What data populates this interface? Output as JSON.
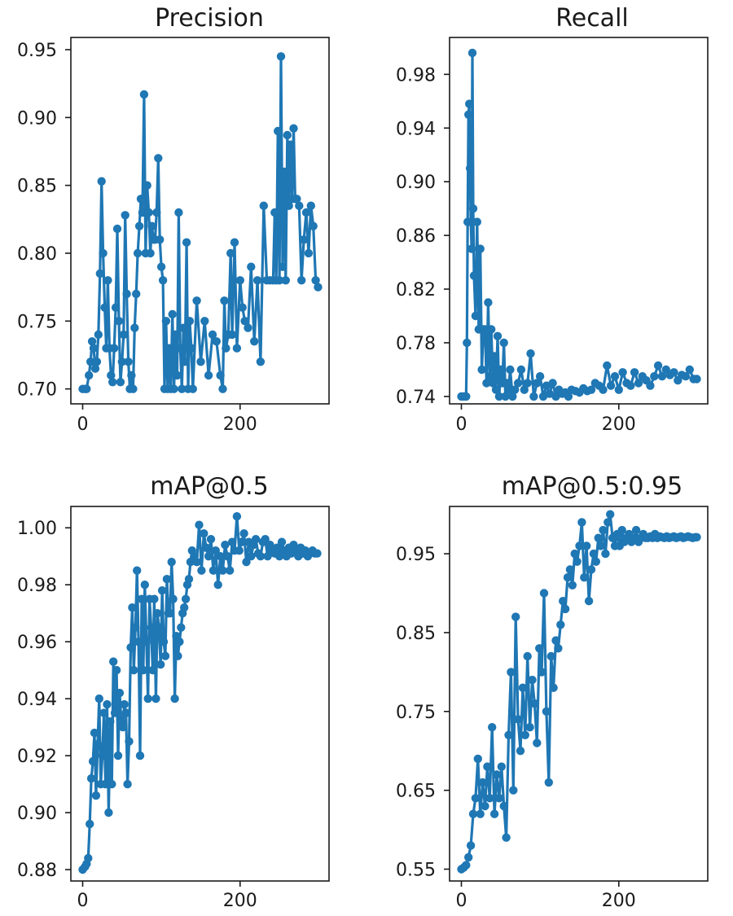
{
  "colors": {
    "series": "#1f77b4",
    "axes": "#1a1a1a",
    "background": "#ffffff"
  },
  "chart_data": [
    {
      "type": "line",
      "title": "Precision",
      "xlabel": "",
      "ylabel": "",
      "xlim": [
        -15,
        313
      ],
      "ylim": [
        0.689,
        0.959
      ],
      "xticks": [
        0,
        200
      ],
      "yticks": [
        0.7,
        0.75,
        0.8,
        0.85,
        0.9,
        0.95
      ],
      "ytick_labels": [
        "0.70",
        "0.75",
        "0.80",
        "0.85",
        "0.90",
        "0.95"
      ],
      "markers": true,
      "series": [
        {
          "name": "Precision",
          "x": [
            0,
            3,
            5,
            8,
            10,
            12,
            14,
            16,
            18,
            20,
            22,
            24,
            26,
            28,
            30,
            32,
            34,
            36,
            38,
            40,
            42,
            44,
            46,
            48,
            50,
            52,
            54,
            56,
            58,
            60,
            62,
            64,
            66,
            68,
            70,
            72,
            74,
            76,
            78,
            80,
            82,
            84,
            86,
            88,
            90,
            92,
            94,
            96,
            98,
            100,
            102,
            104,
            106,
            108,
            110,
            112,
            114,
            116,
            118,
            120,
            122,
            124,
            126,
            128,
            130,
            132,
            134,
            136,
            138,
            140,
            145,
            150,
            155,
            160,
            165,
            170,
            175,
            178,
            180,
            182,
            185,
            188,
            190,
            193,
            196,
            200,
            203,
            206,
            210,
            214,
            218,
            222,
            226,
            230,
            234,
            238,
            242,
            244,
            246,
            248,
            250,
            252,
            254,
            256,
            258,
            260,
            262,
            264,
            266,
            268,
            270,
            272,
            275,
            278,
            281,
            284,
            287,
            290,
            293,
            296,
            299
          ],
          "values": [
            0.7,
            0.7,
            0.7,
            0.71,
            0.72,
            0.735,
            0.73,
            0.715,
            0.72,
            0.74,
            0.785,
            0.853,
            0.8,
            0.76,
            0.73,
            0.78,
            0.73,
            0.71,
            0.705,
            0.73,
            0.76,
            0.818,
            0.75,
            0.705,
            0.72,
            0.74,
            0.828,
            0.77,
            0.72,
            0.7,
            0.71,
            0.7,
            0.745,
            0.77,
            0.8,
            0.82,
            0.84,
            0.83,
            0.917,
            0.8,
            0.85,
            0.83,
            0.8,
            0.82,
            0.81,
            0.81,
            0.83,
            0.87,
            0.81,
            0.79,
            0.78,
            0.7,
            0.75,
            0.7,
            0.73,
            0.7,
            0.755,
            0.7,
            0.74,
            0.71,
            0.83,
            0.73,
            0.7,
            0.745,
            0.72,
            0.808,
            0.7,
            0.75,
            0.73,
            0.7,
            0.765,
            0.72,
            0.75,
            0.71,
            0.74,
            0.735,
            0.71,
            0.7,
            0.765,
            0.73,
            0.74,
            0.8,
            0.74,
            0.808,
            0.73,
            0.78,
            0.76,
            0.75,
            0.745,
            0.79,
            0.735,
            0.78,
            0.72,
            0.835,
            0.78,
            0.78,
            0.78,
            0.83,
            0.78,
            0.89,
            0.78,
            0.945,
            0.79,
            0.86,
            0.78,
            0.887,
            0.835,
            0.88,
            0.84,
            0.892,
            0.84,
            0.84,
            0.835,
            0.78,
            0.81,
            0.83,
            0.8,
            0.835,
            0.82,
            0.78,
            0.775
          ]
        }
      ]
    },
    {
      "type": "line",
      "title": "Recall",
      "xlabel": "",
      "ylabel": "",
      "xlim": [
        -15,
        313
      ],
      "ylim": [
        0.7345,
        1.0075
      ],
      "xticks": [
        0,
        200
      ],
      "yticks": [
        0.74,
        0.78,
        0.82,
        0.86,
        0.9,
        0.94,
        0.98
      ],
      "ytick_labels": [
        "0.74",
        "0.78",
        "0.82",
        "0.86",
        "0.90",
        "0.94",
        "0.98"
      ],
      "markers": true,
      "series": [
        {
          "name": "Recall",
          "x": [
            0,
            2,
            4,
            6,
            7,
            8,
            9,
            10,
            11,
            12,
            13,
            14,
            15,
            16,
            18,
            20,
            22,
            24,
            26,
            28,
            30,
            32,
            34,
            36,
            38,
            40,
            42,
            44,
            46,
            48,
            50,
            52,
            54,
            56,
            58,
            60,
            62,
            65,
            68,
            72,
            76,
            80,
            84,
            88,
            92,
            96,
            100,
            104,
            108,
            112,
            116,
            120,
            124,
            128,
            132,
            136,
            140,
            145,
            150,
            155,
            160,
            165,
            170,
            175,
            180,
            185,
            190,
            195,
            200,
            205,
            210,
            215,
            220,
            225,
            230,
            235,
            240,
            245,
            250,
            255,
            260,
            265,
            270,
            275,
            280,
            285,
            290,
            295,
            299
          ],
          "values": [
            0.74,
            0.74,
            0.74,
            0.74,
            0.78,
            0.87,
            0.95,
            0.958,
            0.91,
            0.87,
            0.85,
            0.996,
            0.88,
            0.83,
            0.8,
            0.87,
            0.79,
            0.85,
            0.76,
            0.79,
            0.79,
            0.75,
            0.81,
            0.755,
            0.79,
            0.75,
            0.77,
            0.745,
            0.785,
            0.74,
            0.76,
            0.75,
            0.78,
            0.74,
            0.75,
            0.745,
            0.76,
            0.74,
            0.745,
            0.75,
            0.76,
            0.745,
            0.75,
            0.772,
            0.74,
            0.75,
            0.755,
            0.74,
            0.748,
            0.742,
            0.75,
            0.74,
            0.745,
            0.742,
            0.743,
            0.74,
            0.745,
            0.744,
            0.743,
            0.746,
            0.744,
            0.745,
            0.75,
            0.748,
            0.745,
            0.763,
            0.748,
            0.755,
            0.745,
            0.758,
            0.75,
            0.748,
            0.758,
            0.75,
            0.755,
            0.752,
            0.748,
            0.755,
            0.763,
            0.755,
            0.76,
            0.756,
            0.758,
            0.752,
            0.756,
            0.755,
            0.76,
            0.753,
            0.753
          ]
        }
      ]
    },
    {
      "type": "line",
      "title": "mAP@0.5",
      "xlabel": "",
      "ylabel": "",
      "xlim": [
        -15,
        313
      ],
      "ylim": [
        0.876,
        1.0075
      ],
      "xticks": [
        0,
        200
      ],
      "yticks": [
        0.88,
        0.9,
        0.92,
        0.94,
        0.96,
        0.98,
        1.0
      ],
      "ytick_labels": [
        "0.88",
        "0.90",
        "0.92",
        "0.94",
        "0.96",
        "0.98",
        "1.00"
      ],
      "markers": true,
      "series": [
        {
          "name": "mAP@0.5",
          "x": [
            0,
            3,
            5,
            7,
            9,
            11,
            13,
            15,
            17,
            19,
            21,
            23,
            25,
            27,
            29,
            31,
            33,
            35,
            37,
            39,
            41,
            43,
            45,
            47,
            49,
            51,
            53,
            55,
            57,
            59,
            61,
            63,
            65,
            67,
            69,
            71,
            73,
            75,
            77,
            79,
            81,
            83,
            85,
            87,
            89,
            91,
            93,
            95,
            97,
            99,
            101,
            103,
            105,
            107,
            109,
            111,
            113,
            115,
            117,
            119,
            121,
            123,
            125,
            127,
            129,
            131,
            133,
            135,
            137,
            139,
            142,
            145,
            148,
            151,
            154,
            157,
            160,
            163,
            166,
            169,
            172,
            175,
            178,
            181,
            184,
            187,
            190,
            193,
            196,
            199,
            202,
            205,
            208,
            211,
            214,
            217,
            220,
            223,
            226,
            229,
            232,
            235,
            238,
            241,
            244,
            247,
            250,
            253,
            256,
            259,
            262,
            265,
            268,
            271,
            274,
            277,
            280,
            283,
            286,
            289,
            292,
            295,
            298
          ],
          "values": [
            0.88,
            0.881,
            0.882,
            0.884,
            0.896,
            0.912,
            0.918,
            0.928,
            0.906,
            0.924,
            0.94,
            0.91,
            0.92,
            0.935,
            0.91,
            0.938,
            0.9,
            0.932,
            0.91,
            0.953,
            0.935,
            0.95,
            0.92,
            0.942,
            0.932,
            0.93,
            0.938,
            0.935,
            0.91,
            0.925,
            0.958,
            0.972,
            0.95,
            0.965,
            0.985,
            0.96,
            0.92,
            0.975,
            0.95,
            0.98,
            0.96,
            0.94,
            0.975,
            0.965,
            0.95,
            0.975,
            0.94,
            0.97,
            0.965,
            0.952,
            0.978,
            0.96,
            0.955,
            0.982,
            0.97,
            0.97,
            0.988,
            0.975,
            0.94,
            0.962,
            0.955,
            0.96,
            0.965,
            0.97,
            0.972,
            0.975,
            0.98,
            0.982,
            0.988,
            0.992,
            0.99,
            0.988,
            1.001,
            0.985,
            0.998,
            0.993,
            0.99,
            0.996,
            0.985,
            0.992,
            0.98,
            0.99,
            0.985,
            0.994,
            0.99,
            0.985,
            0.995,
            0.992,
            1.004,
            0.992,
            0.995,
            0.998,
            0.988,
            0.995,
            0.99,
            0.994,
            0.996,
            0.991,
            0.99,
            0.995,
            0.996,
            0.99,
            0.994,
            0.992,
            0.991,
            0.993,
            0.99,
            0.995,
            0.992,
            0.99,
            0.993,
            0.991,
            0.994,
            0.992,
            0.99,
            0.993,
            0.991,
            0.992,
            0.99,
            0.991,
            0.992,
            0.991,
            0.991
          ]
        }
      ]
    },
    {
      "type": "line",
      "title": "mAP@0.5:0.95",
      "xlabel": "",
      "ylabel": "",
      "xlim": [
        -15,
        313
      ],
      "ylim": [
        0.535,
        1.01
      ],
      "xticks": [
        0,
        200
      ],
      "yticks": [
        0.55,
        0.65,
        0.75,
        0.85,
        0.95
      ],
      "ytick_labels": [
        "0.55",
        "0.65",
        "0.75",
        "0.85",
        "0.95"
      ],
      "markers": true,
      "series": [
        {
          "name": "mAP@0.5:0.95",
          "x": [
            0,
            3,
            6,
            9,
            12,
            15,
            18,
            21,
            24,
            27,
            30,
            33,
            36,
            39,
            42,
            45,
            48,
            51,
            54,
            57,
            60,
            63,
            66,
            69,
            72,
            75,
            78,
            81,
            84,
            87,
            90,
            93,
            96,
            99,
            102,
            105,
            108,
            111,
            114,
            117,
            120,
            123,
            126,
            129,
            132,
            135,
            138,
            141,
            144,
            147,
            150,
            153,
            156,
            159,
            162,
            165,
            168,
            171,
            174,
            177,
            180,
            183,
            186,
            189,
            192,
            195,
            198,
            201,
            204,
            207,
            210,
            213,
            216,
            219,
            222,
            225,
            228,
            231,
            234,
            237,
            240,
            243,
            246,
            249,
            252,
            255,
            258,
            261,
            264,
            267,
            270,
            273,
            276,
            279,
            282,
            285,
            288,
            291,
            294,
            297,
            299
          ],
          "values": [
            0.55,
            0.552,
            0.555,
            0.565,
            0.58,
            0.62,
            0.64,
            0.69,
            0.62,
            0.66,
            0.63,
            0.68,
            0.64,
            0.73,
            0.62,
            0.67,
            0.64,
            0.68,
            0.63,
            0.59,
            0.72,
            0.8,
            0.65,
            0.87,
            0.74,
            0.7,
            0.78,
            0.72,
            0.82,
            0.73,
            0.79,
            0.76,
            0.71,
            0.83,
            0.8,
            0.9,
            0.75,
            0.66,
            0.82,
            0.78,
            0.84,
            0.83,
            0.86,
            0.89,
            0.88,
            0.92,
            0.93,
            0.91,
            0.95,
            0.94,
            0.96,
            0.99,
            0.92,
            0.96,
            0.89,
            0.93,
            0.95,
            0.94,
            0.97,
            0.96,
            0.98,
            0.95,
            0.99,
            1.0,
            0.97,
            0.96,
            0.975,
            0.96,
            0.98,
            0.965,
            0.97,
            0.975,
            0.965,
            0.97,
            0.98,
            0.965,
            0.97,
            0.975,
            0.97,
            0.97,
            0.972,
            0.97,
            0.975,
            0.97,
            0.972,
            0.971,
            0.97,
            0.972,
            0.97,
            0.971,
            0.972,
            0.97,
            0.971,
            0.972,
            0.97,
            0.971,
            0.972,
            0.971,
            0.97,
            0.971,
            0.971
          ]
        }
      ]
    }
  ]
}
